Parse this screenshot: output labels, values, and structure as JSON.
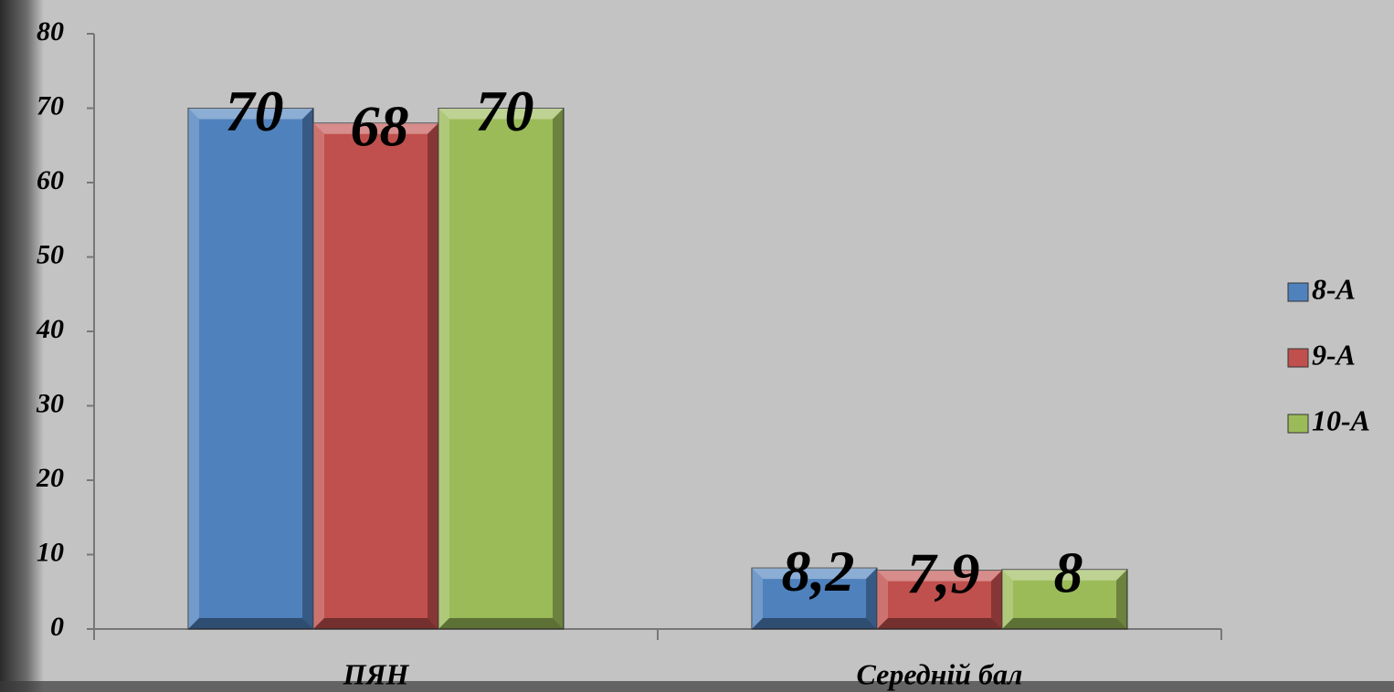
{
  "chart_data": {
    "type": "bar",
    "categories": [
      "ПЯН",
      "Середній бал"
    ],
    "series": [
      {
        "name": "8-А",
        "color": "#4f81bd",
        "values": [
          70,
          8.2
        ],
        "value_labels": [
          "70",
          "8,2"
        ]
      },
      {
        "name": "9-А",
        "color": "#c0504d",
        "values": [
          68,
          7.9
        ],
        "value_labels": [
          "68",
          "7,9"
        ]
      },
      {
        "name": "10-А",
        "color": "#9bbb59",
        "values": [
          70,
          8
        ],
        "value_labels": [
          "70",
          "8"
        ]
      }
    ],
    "ylim": [
      0,
      80
    ],
    "yticks": [
      0,
      10,
      20,
      30,
      40,
      50,
      60,
      70,
      80
    ],
    "legend": "right"
  }
}
